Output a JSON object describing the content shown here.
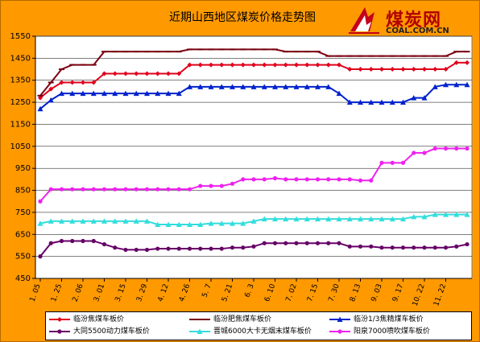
{
  "title": "近期山西地区煤炭价格走势图",
  "logo": {
    "name": "煤炭网",
    "url": "COAL.COM.CN"
  },
  "chart_data": {
    "type": "line",
    "title": "近期山西地区煤炭价格走势图",
    "ylim": [
      450,
      1550
    ],
    "yticks": [
      450,
      550,
      650,
      750,
      850,
      950,
      1050,
      1150,
      1250,
      1350,
      1450,
      1550
    ],
    "x_count": 41,
    "xtick_labels": [
      {
        "i": 0,
        "label": "1. 05"
      },
      {
        "i": 2,
        "label": "1. 25"
      },
      {
        "i": 4,
        "label": "2. 06"
      },
      {
        "i": 6,
        "label": "3. 01"
      },
      {
        "i": 8,
        "label": "3. 15"
      },
      {
        "i": 10,
        "label": "3. 29"
      },
      {
        "i": 12,
        "label": "4. 12"
      },
      {
        "i": 14,
        "label": "4. 26"
      },
      {
        "i": 16,
        "label": "5. 7"
      },
      {
        "i": 18,
        "label": "5. 21"
      },
      {
        "i": 20,
        "label": "6. 3"
      },
      {
        "i": 22,
        "label": "6. 10"
      },
      {
        "i": 24,
        "label": "7. 02"
      },
      {
        "i": 26,
        "label": "7. 15"
      },
      {
        "i": 28,
        "label": "7. 30"
      },
      {
        "i": 30,
        "label": "8. 13"
      },
      {
        "i": 32,
        "label": "9. 03"
      },
      {
        "i": 34,
        "label": "9. 17"
      },
      {
        "i": 36,
        "label": "10. 22"
      },
      {
        "i": 38,
        "label": "11. 22"
      }
    ],
    "grid": true,
    "legend_position": "bottom",
    "series": [
      {
        "name": "临汾焦煤车板价",
        "color": "#e0001b",
        "marker": "diamond",
        "values": [
          1270,
          1310,
          1340,
          1340,
          1340,
          1340,
          1380,
          1380,
          1380,
          1380,
          1380,
          1380,
          1380,
          1380,
          1420,
          1420,
          1420,
          1420,
          1420,
          1420,
          1420,
          1420,
          1420,
          1420,
          1420,
          1420,
          1420,
          1420,
          1420,
          1400,
          1400,
          1400,
          1400,
          1400,
          1400,
          1400,
          1400,
          1400,
          1400,
          1430,
          1430
        ]
      },
      {
        "name": "临汾肥焦煤车板价",
        "color": "#7a0010",
        "marker": "dash",
        "values": [
          1280,
          1340,
          1400,
          1420,
          1420,
          1420,
          1480,
          1480,
          1480,
          1480,
          1480,
          1480,
          1480,
          1480,
          1490,
          1490,
          1490,
          1490,
          1490,
          1490,
          1490,
          1490,
          1490,
          1480,
          1480,
          1480,
          1480,
          1460,
          1460,
          1460,
          1460,
          1460,
          1460,
          1460,
          1460,
          1460,
          1460,
          1460,
          1460,
          1480,
          1480
        ]
      },
      {
        "name": "临汾1/3焦精煤车板价",
        "color": "#0022cc",
        "marker": "triangle",
        "values": [
          1220,
          1260,
          1290,
          1290,
          1290,
          1290,
          1290,
          1290,
          1290,
          1290,
          1290,
          1290,
          1290,
          1290,
          1320,
          1320,
          1320,
          1320,
          1320,
          1320,
          1320,
          1320,
          1320,
          1320,
          1320,
          1320,
          1320,
          1320,
          1290,
          1250,
          1250,
          1250,
          1250,
          1250,
          1250,
          1270,
          1270,
          1320,
          1330,
          1330,
          1330
        ]
      },
      {
        "name": "大同5500动力煤车板价",
        "color": "#660066",
        "marker": "circle",
        "values": [
          550,
          610,
          620,
          620,
          620,
          620,
          605,
          590,
          580,
          580,
          580,
          585,
          585,
          585,
          585,
          585,
          585,
          585,
          590,
          590,
          595,
          610,
          610,
          610,
          610,
          610,
          610,
          610,
          610,
          595,
          595,
          595,
          590,
          590,
          590,
          590,
          590,
          590,
          590,
          595,
          605
        ]
      },
      {
        "name": "晋城6000大卡无烟末煤车板价",
        "color": "#33dddd",
        "marker": "triangle",
        "values": [
          700,
          710,
          710,
          710,
          710,
          710,
          710,
          710,
          710,
          710,
          710,
          695,
          695,
          695,
          695,
          695,
          700,
          700,
          700,
          700,
          710,
          720,
          720,
          720,
          720,
          720,
          720,
          720,
          720,
          720,
          720,
          720,
          720,
          720,
          720,
          730,
          730,
          740,
          740,
          740,
          740
        ]
      },
      {
        "name": "阳泉7000喷吹煤车板价",
        "color": "#ee22ee",
        "marker": "circle",
        "values": [
          800,
          855,
          855,
          855,
          855,
          855,
          855,
          855,
          855,
          855,
          855,
          855,
          855,
          855,
          855,
          870,
          870,
          870,
          880,
          900,
          900,
          900,
          905,
          900,
          900,
          900,
          900,
          900,
          900,
          900,
          895,
          895,
          975,
          975,
          975,
          1020,
          1020,
          1040,
          1040,
          1040,
          1040
        ]
      }
    ]
  }
}
